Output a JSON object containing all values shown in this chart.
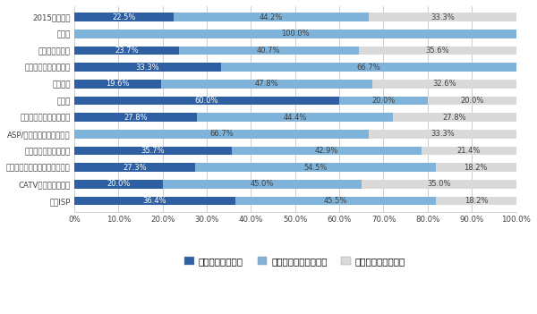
{
  "categories": [
    "2015年度全体",
    "その他",
    "学校、研究機関",
    "公共団体、非営利組織",
    "一般企業",
    "その他",
    "学術機関・公共団体など",
    "ASP/コンテンツプロバイダ",
    "ホスティングサービス",
    "インターネットデータセンター",
    "CATVインターネット",
    "一般ISP"
  ],
  "series": [
    {
      "name": "進んでいると思う",
      "color": "#2E5FA3",
      "values": [
        22.5,
        0.0,
        23.7,
        33.3,
        19.6,
        60.0,
        27.8,
        0.0,
        35.7,
        27.3,
        20.0,
        36.4
      ],
      "label_color": "white"
    },
    {
      "name": "進んでいると思わない",
      "color": "#7FB3D9",
      "values": [
        44.2,
        100.0,
        40.7,
        66.7,
        47.8,
        20.0,
        44.4,
        66.7,
        42.9,
        54.5,
        45.0,
        45.5
      ],
      "label_color": "#404040"
    },
    {
      "name": "どちらともいえない",
      "color": "#D9D9D9",
      "values": [
        33.3,
        0.0,
        35.6,
        0.0,
        32.6,
        20.0,
        27.8,
        33.3,
        21.4,
        18.2,
        35.0,
        18.2
      ],
      "label_color": "#404040"
    }
  ],
  "labels": [
    [
      "22.5%",
      "",
      "23.7%",
      "33.3%",
      "19.6%",
      "60.0%",
      "27.8%",
      "",
      "35.7%",
      "27.3%",
      "20.0%",
      "36.4%"
    ],
    [
      "44.2%",
      "100.0%",
      "40.7%",
      "66.7%",
      "47.8%",
      "20.0%",
      "44.4%",
      "66.7%",
      "42.9%",
      "54.5%",
      "45.0%",
      "45.5%"
    ],
    [
      "33.3%",
      "",
      "35.6%",
      "",
      "32.6%",
      "20.0%",
      "27.8%",
      "33.3%",
      "21.4%",
      "18.2%",
      "35.0%",
      "18.2%"
    ]
  ],
  "xlim": [
    0,
    100
  ],
  "xticks": [
    0,
    10,
    20,
    30,
    40,
    50,
    60,
    70,
    80,
    90,
    100
  ],
  "xtick_labels": [
    "0%",
    "10.0%",
    "20.0%",
    "30.0%",
    "40.0%",
    "50.0%",
    "60.0%",
    "70.0%",
    "80.0%",
    "90.0%",
    "100.0%"
  ],
  "figsize": [
    6.0,
    3.51
  ],
  "dpi": 100,
  "bar_height": 0.52,
  "background_color": "#FFFFFF",
  "text_color": "#404040",
  "label_fontsize": 6.0,
  "tick_fontsize": 6.2,
  "legend_fontsize": 7.5
}
